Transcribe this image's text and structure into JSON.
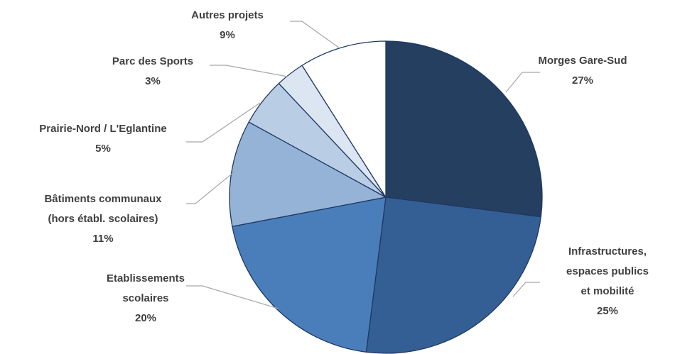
{
  "chart_data": {
    "type": "pie",
    "categories": [
      "Morges Gare-Sud",
      "Infrastructures,\nespaces publics\net mobilité",
      "Etablissements\nscolaires",
      "Bâtiments communaux\n(hors établ. scolaires)",
      "Prairie-Nord / L'Eglantine",
      "Parc des Sports",
      "Autres projets"
    ],
    "values": [
      27,
      25,
      20,
      11,
      5,
      3,
      9
    ],
    "value_labels": [
      "27%",
      "25%",
      "20%",
      "11%",
      "5%",
      "3%",
      "9%"
    ],
    "colors": [
      "#253f61",
      "#345f94",
      "#4a7ebb",
      "#95b3d7",
      "#b9cde5",
      "#dce6f2",
      "#ffffff"
    ]
  }
}
